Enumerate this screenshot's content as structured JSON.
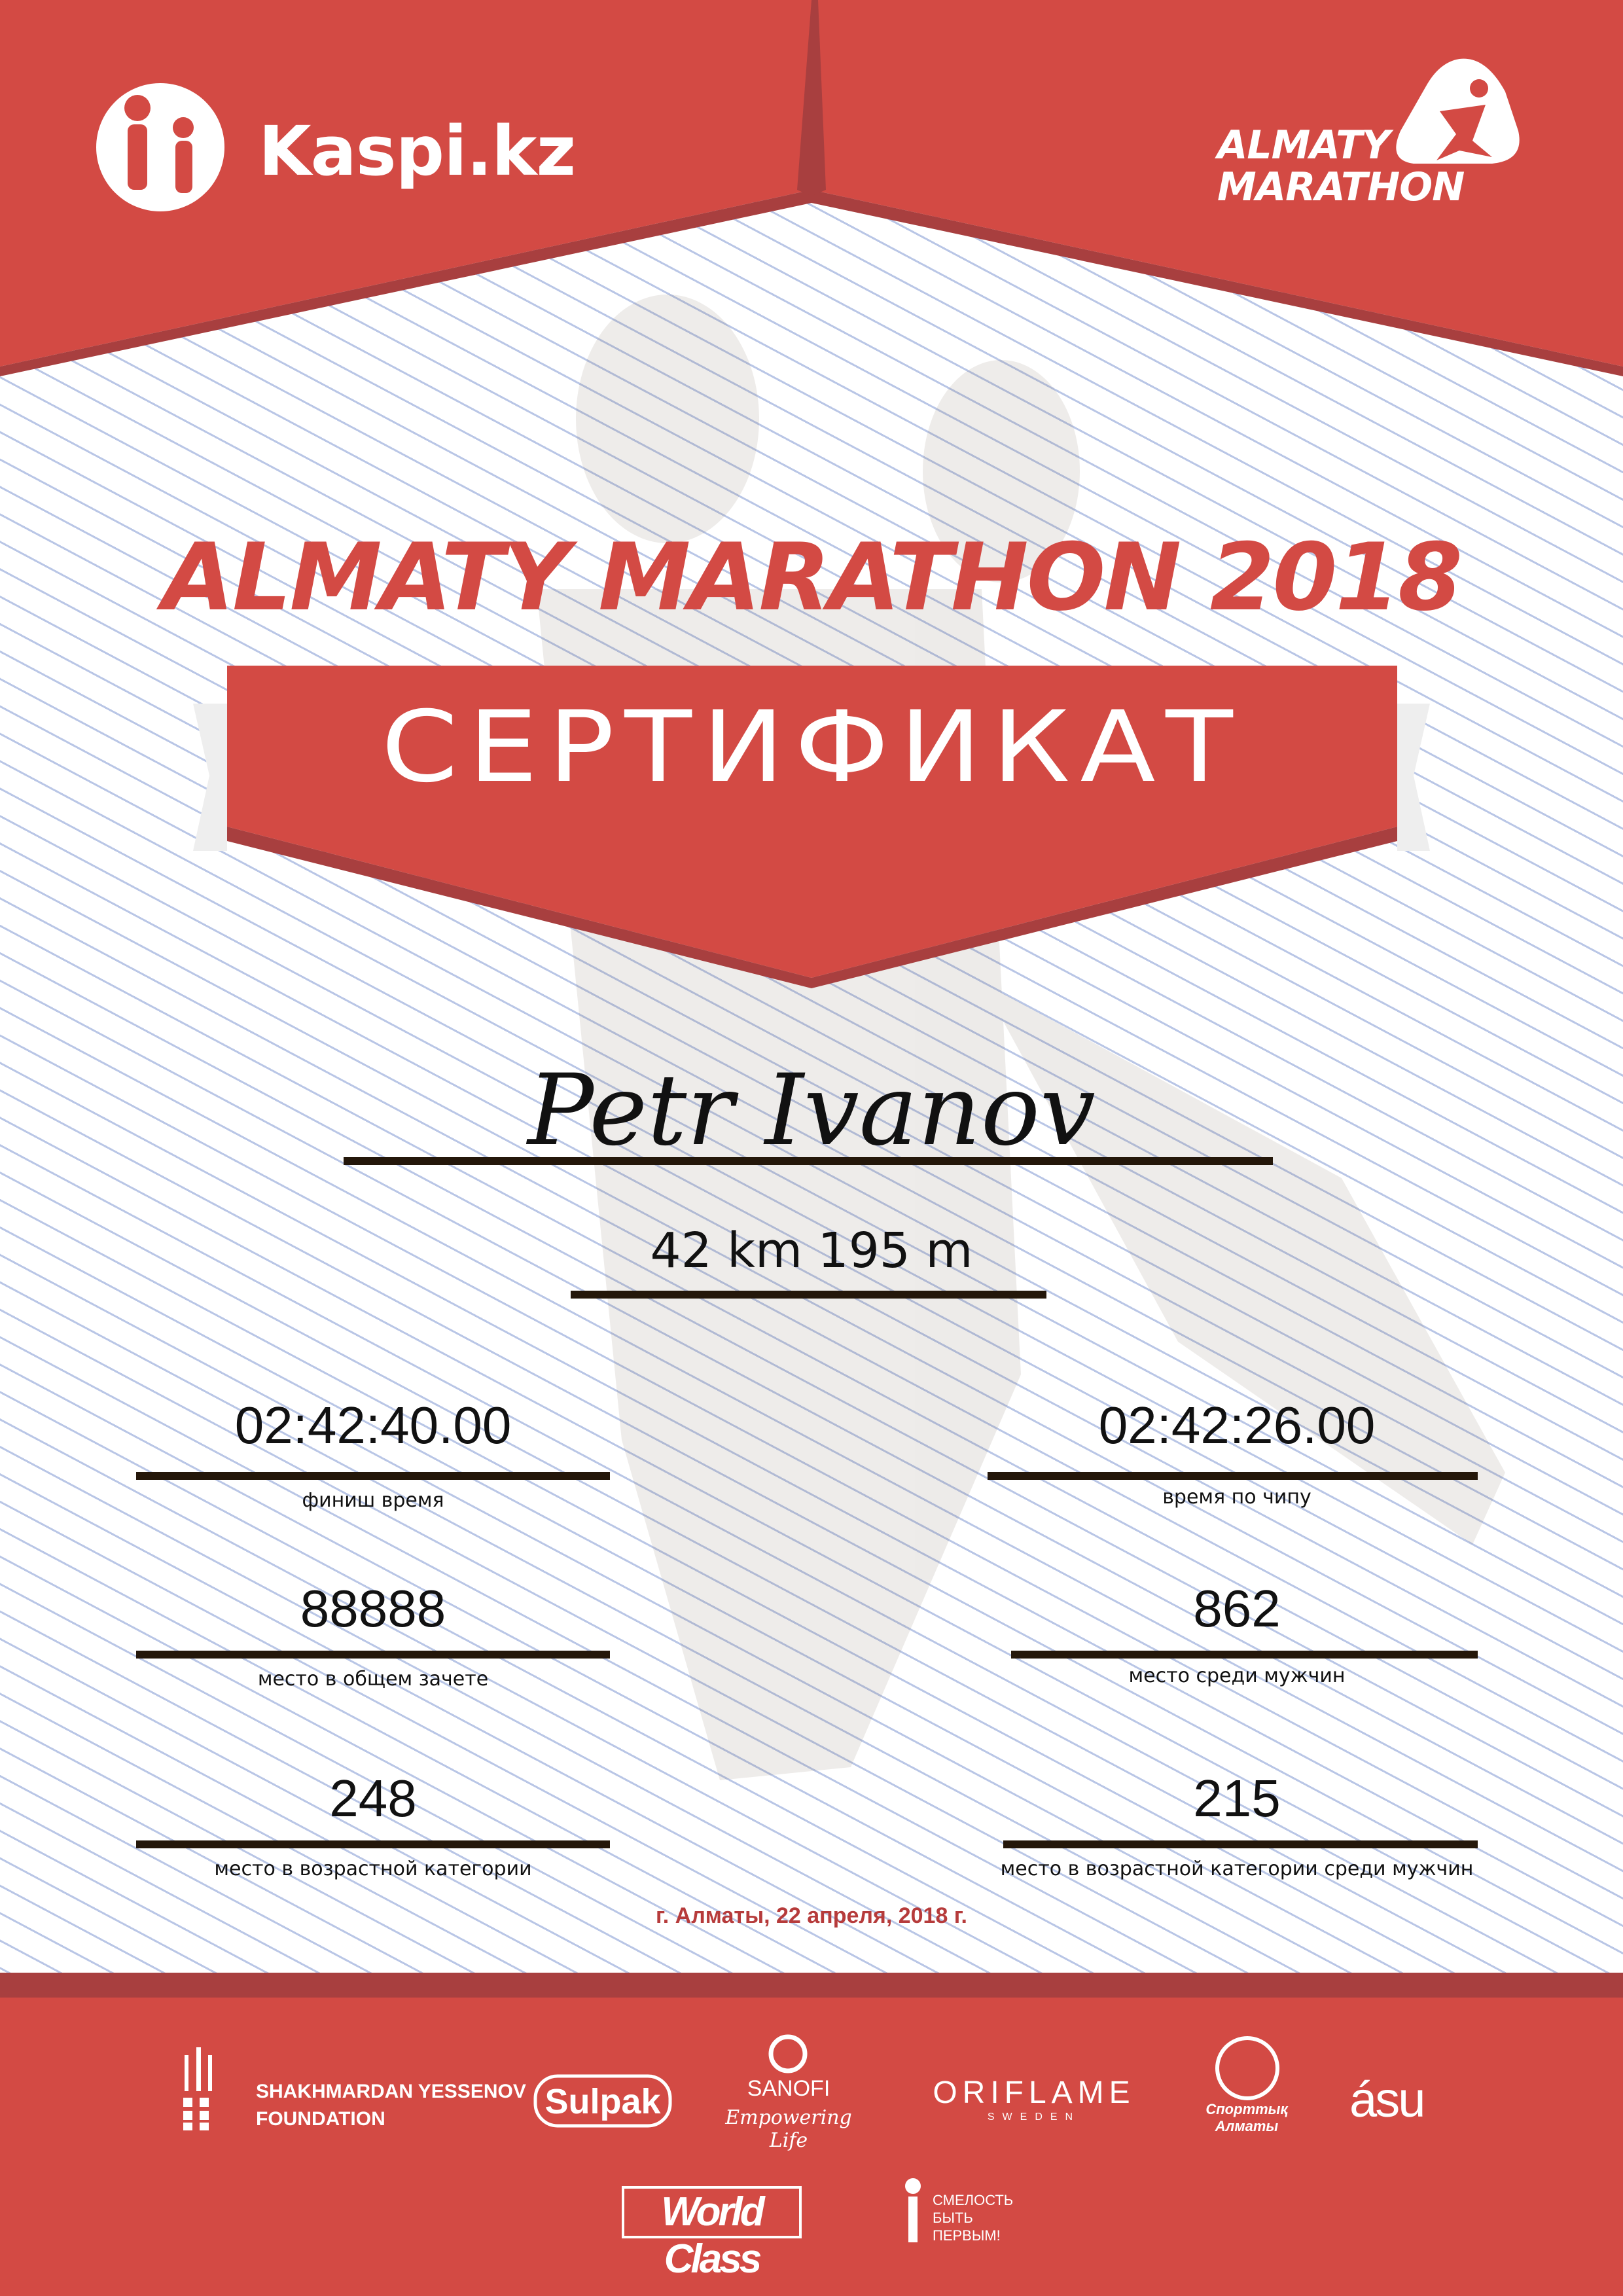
{
  "header": {
    "kaspi_logo": "Kaspi.kz",
    "event_logo_line1": "ALMATY",
    "event_logo_line2": "MARATHON"
  },
  "title": "ALMATY MARATHON 2018",
  "banner": "СЕРТИФИКАТ",
  "participant": {
    "name": "Petr Ivanov",
    "distance": "42 km 195 m"
  },
  "results": [
    {
      "value": "02:42:40.00",
      "label": "финиш время"
    },
    {
      "value": "02:42:26.00",
      "label": "время по чипу"
    },
    {
      "value": "88888",
      "label": "место в общем зачете"
    },
    {
      "value": "862",
      "label": "место среди мужчин"
    },
    {
      "value": "248",
      "label": "место в возрастной категории"
    },
    {
      "value": "215",
      "label": "место в возрастной категории среди мужчин"
    }
  ],
  "date": "г. Алматы, 22 апреля, 2018 г.",
  "sponsors": {
    "yessenov_1": "SHAKHMARDAN YESSENOV",
    "yessenov_2": "FOUNDATION",
    "sulpak": "Sulpak",
    "sanofi": "SANOFI",
    "sanofi_tag": "Empowering Life",
    "oriflame": "ORIFLAME",
    "oriflame_sub": "SWEDEN",
    "sport_almaty": "Спорттық Алматы",
    "asu": "ásu",
    "worldclass": "World Class",
    "smelost": "СМЕЛОСТЬ БЫТЬ ПЕРВЫМ!"
  },
  "colors": {
    "brand_red": "#d34a44",
    "dark_red": "#a83f3f",
    "text": "#111111",
    "rule": "#24170a"
  }
}
